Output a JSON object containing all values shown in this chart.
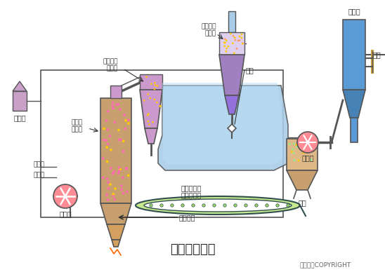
{
  "title": "流化床焚烧炉",
  "copyright": "东方仿真COPYRIGHT",
  "background_color": "#ffffff",
  "labels": {
    "heavy_oil_tank": "重油池",
    "fluidized_bed": "流化床\n焚烧炉",
    "primary_cyclone": "一次旋流\n分离器",
    "secondary_cyclone": "二次旋流\n分离器",
    "mud_cake": "泥饼",
    "fast_dryer": "快速干燥器",
    "belt_conveyor": "带式输送机",
    "blower": "鼓风机",
    "start_use": "启动用",
    "fuel_use": "助燃用",
    "exhaust_fan": "抽风机",
    "dust_remover": "除尘器",
    "water_inlet": "进水",
    "ash_hopper": "灰斗",
    "dry_mud_cake": "干燥泥饼"
  },
  "colors": {
    "incinerator_body": "#c8a070",
    "cyclone_primary": "#cc99cc",
    "cyclone_secondary_top": "#e0d0f0",
    "cyclone_secondary_body": "#a080c0",
    "duct_blue": "#a8cce8",
    "duct_blue2": "#b8ddf5",
    "blower_fan": "#ff8c94",
    "exhaust_fan": "#ff8c94",
    "belt_fill": "#c8e890",
    "belt_outline": "#2f4f4f",
    "ash_hopper_body": "#deb887",
    "ash_hopper_cone": "#c8a070",
    "dust_remover": "#5b9bd5",
    "dust_remover_dark": "#4682b4",
    "arrow_color": "#333333",
    "text_color": "#333333",
    "line_color": "#555555",
    "heavy_oil_tank": "#c8a0c8",
    "box_outline": "#555555",
    "pink_dot": "#ff69b4",
    "yellow_dot": "#ffcc00",
    "orange_dot": "#ff9966",
    "green_dot": "#90ee90",
    "cone_bottom": "#d4a060",
    "valve_fill": "#ffffff"
  }
}
